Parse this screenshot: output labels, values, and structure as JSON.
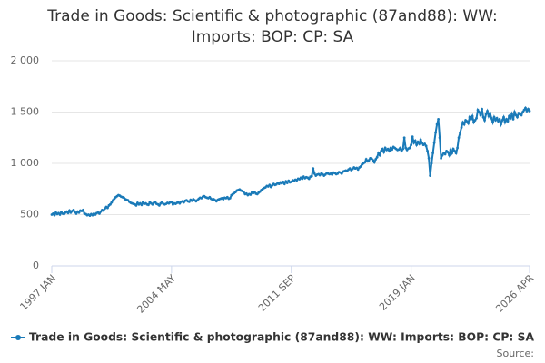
{
  "chart_data": {
    "type": "line",
    "title": "Trade in Goods: Scientific & photographic (87and88): WW:",
    "title_line2": "Imports: BOP: CP: SA",
    "source": "Source:",
    "categories": [
      "1997 JAN",
      null,
      null,
      null,
      null,
      null,
      null,
      null,
      null,
      null,
      null,
      null,
      null,
      null,
      null,
      null,
      null,
      null,
      null,
      null,
      null,
      null,
      null,
      null,
      null,
      null,
      null,
      null,
      null,
      null,
      null,
      null,
      null,
      null,
      null,
      null,
      null,
      null,
      null,
      null,
      null,
      null,
      null,
      null,
      null,
      null,
      null,
      null,
      null,
      null,
      null,
      null,
      null,
      null,
      null,
      null,
      null,
      null,
      null,
      null,
      null,
      null,
      null,
      null,
      null,
      null,
      null,
      null,
      null,
      null,
      null,
      null,
      null,
      null,
      null,
      null,
      null,
      null,
      null,
      null,
      null,
      null,
      null,
      null,
      null,
      null,
      null,
      null,
      "2004 MAY",
      null,
      null,
      null,
      null,
      null,
      null,
      null,
      null,
      null,
      null,
      null,
      null,
      null,
      null,
      null,
      null,
      null,
      null,
      null,
      null,
      null,
      null,
      null,
      null,
      null,
      null,
      null,
      null,
      null,
      null,
      null,
      null,
      null,
      null,
      null,
      null,
      null,
      null,
      null,
      null,
      null,
      null,
      null,
      null,
      null,
      null,
      null,
      null,
      null,
      null,
      null,
      null,
      null,
      null,
      null,
      null,
      null,
      null,
      null,
      null,
      null,
      null,
      null,
      null,
      null,
      null,
      null,
      null,
      null,
      null,
      null,
      null,
      null,
      null,
      null,
      null,
      null,
      null,
      null,
      null,
      null,
      null,
      null,
      null,
      null,
      null,
      null,
      "2011 SEP",
      null,
      null,
      null,
      null,
      null,
      null,
      null,
      null,
      null,
      null,
      null,
      null,
      null,
      null,
      null,
      null,
      null,
      null,
      null,
      null,
      null,
      null,
      null,
      null,
      null,
      null,
      null,
      null,
      null,
      null,
      null,
      null,
      null,
      null,
      null,
      null,
      null,
      null,
      null,
      null,
      null,
      null,
      null,
      null,
      null,
      null,
      null,
      null,
      null,
      null,
      null,
      null,
      null,
      null,
      null,
      null,
      null,
      null,
      null,
      null,
      null,
      null,
      null,
      null,
      null,
      null,
      null,
      null,
      null,
      null,
      null,
      null,
      null,
      null,
      null,
      null,
      null,
      null,
      null,
      null,
      null,
      null,
      null,
      null,
      null,
      null,
      null,
      "2019 JAN",
      null,
      null,
      null,
      null,
      null,
      null,
      null,
      null,
      null,
      null,
      null,
      null,
      null,
      null,
      null,
      null,
      null,
      null,
      null,
      null,
      null,
      null,
      null,
      null,
      null,
      null,
      null,
      null,
      null,
      null,
      null,
      null,
      null,
      null,
      null,
      null,
      null,
      null,
      null,
      null,
      null,
      null,
      null,
      null,
      null,
      null,
      null,
      null,
      null,
      null,
      null,
      null,
      null,
      null,
      null,
      null,
      null,
      null,
      null,
      null,
      null,
      null,
      null,
      null,
      null,
      null,
      null,
      null,
      null,
      null,
      null,
      null,
      null,
      null,
      null,
      null,
      null,
      null,
      null,
      null,
      null,
      null,
      null,
      null,
      null,
      null,
      "2026 APR"
    ],
    "series": [
      {
        "name": "Trade in Goods: Scientific & photographic (87and88): WW: Imports: BOP: CP: SA",
        "color": "#1a7ab8",
        "values": [
          500,
          510,
          495,
          520,
          505,
          515,
          500,
          525,
          510,
          505,
          520,
          530,
          515,
          540,
          520,
          535,
          545,
          525,
          510,
          530,
          520,
          540,
          535,
          545,
          510,
          505,
          495,
          500,
          490,
          505,
          495,
          510,
          500,
          515,
          520,
          510,
          530,
          545,
          540,
          560,
          575,
          565,
          590,
          600,
          620,
          640,
          655,
          670,
          680,
          690,
          685,
          675,
          670,
          665,
          650,
          645,
          640,
          625,
          615,
          610,
          605,
          600,
          590,
          615,
          600,
          610,
          595,
          620,
          605,
          610,
          600,
          595,
          620,
          610,
          600,
          615,
          625,
          605,
          600,
          590,
          610,
          620,
          605,
          600,
          605,
          615,
          610,
          620,
          625,
          600,
          610,
          605,
          615,
          620,
          610,
          625,
          630,
          620,
          635,
          640,
          630,
          625,
          645,
          635,
          650,
          640,
          630,
          640,
          655,
          665,
          660,
          675,
          680,
          670,
          665,
          660,
          670,
          655,
          645,
          650,
          640,
          630,
          645,
          650,
          655,
          660,
          650,
          665,
          660,
          670,
          655,
          660,
          690,
          700,
          710,
          720,
          735,
          740,
          745,
          735,
          730,
          720,
          700,
          705,
          690,
          700,
          695,
          715,
          710,
          720,
          705,
          700,
          715,
          725,
          740,
          750,
          760,
          765,
          780,
          775,
          790,
          770,
          785,
          800,
          790,
          795,
          810,
          800,
          815,
          805,
          820,
          800,
          825,
          810,
          830,
          815,
          820,
          835,
          830,
          840,
          835,
          850,
          845,
          860,
          850,
          870,
          855,
          865,
          860,
          850,
          870,
          875,
          950,
          900,
          880,
          890,
          895,
          885,
          900,
          895,
          880,
          890,
          905,
          900,
          895,
          900,
          890,
          910,
          905,
          895,
          900,
          915,
          910,
          900,
          920,
          925,
          930,
          925,
          940,
          950,
          935,
          945,
          960,
          950,
          955,
          940,
          960,
          970,
          990,
          1000,
          1010,
          1040,
          1020,
          1030,
          1050,
          1045,
          1030,
          1010,
          1040,
          1060,
          1100,
          1080,
          1120,
          1140,
          1110,
          1150,
          1130,
          1140,
          1120,
          1150,
          1135,
          1160,
          1150,
          1140,
          1130,
          1135,
          1150,
          1120,
          1140,
          1250,
          1150,
          1130,
          1145,
          1150,
          1180,
          1260,
          1200,
          1220,
          1180,
          1210,
          1190,
          1230,
          1200,
          1180,
          1190,
          1170,
          1120,
          1050,
          880,
          1000,
          1100,
          1200,
          1300,
          1380,
          1430,
          1250,
          1050,
          1080,
          1100,
          1090,
          1120,
          1110,
          1080,
          1130,
          1100,
          1140,
          1120,
          1100,
          1150,
          1250,
          1300,
          1350,
          1400,
          1380,
          1420,
          1410,
          1390,
          1450,
          1430,
          1460,
          1400,
          1420,
          1440,
          1520,
          1500,
          1470,
          1530,
          1450,
          1420,
          1480,
          1510,
          1460,
          1490,
          1440,
          1400,
          1450,
          1420,
          1440,
          1410,
          1430,
          1380,
          1420,
          1450,
          1400,
          1430,
          1410,
          1460,
          1440,
          1480,
          1430,
          1500,
          1470,
          1450,
          1490,
          1480,
          1470,
          1500,
          1520,
          1540,
          1510,
          1530,
          1510
        ]
      }
    ],
    "ylim": [
      0,
      2000
    ],
    "yticks": [
      0,
      500,
      {
        "value": 1000,
        "label": "1 000"
      },
      {
        "value": 1500,
        "label": "1 500"
      },
      {
        "value": 2000,
        "label": "2 000"
      }
    ],
    "grid": true
  }
}
